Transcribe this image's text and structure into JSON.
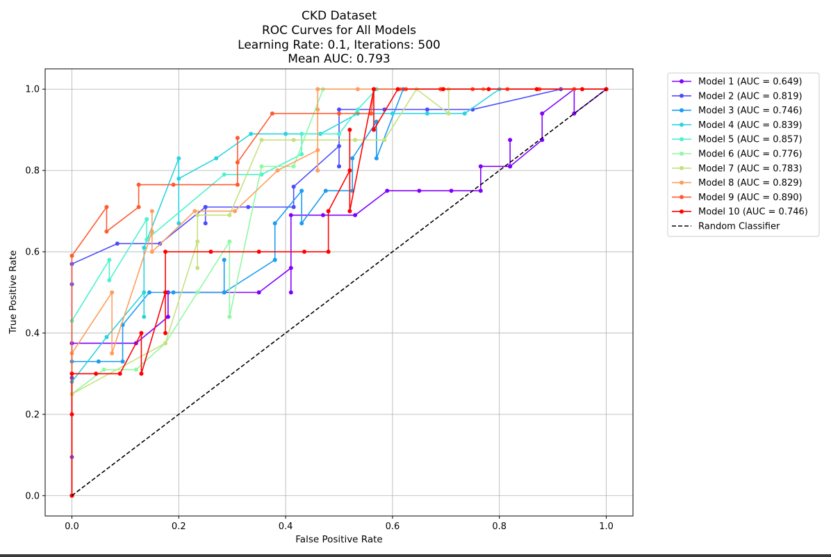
{
  "chart_data": {
    "type": "line",
    "title_lines": [
      "CKD Dataset",
      "ROC Curves for All Models",
      "Learning Rate: 0.1, Iterations: 500",
      "Mean AUC: 0.793"
    ],
    "xlabel": "False Positive Rate",
    "ylabel": "True Positive Rate",
    "xlim": [
      -0.05,
      1.05
    ],
    "ylim": [
      -0.05,
      1.05
    ],
    "x_ticks": [
      0.0,
      0.2,
      0.4,
      0.6,
      0.8,
      1.0
    ],
    "y_ticks": [
      0.0,
      0.2,
      0.4,
      0.6,
      0.8,
      1.0
    ],
    "x_tick_labels": [
      "0.0",
      "0.2",
      "0.4",
      "0.6",
      "0.8",
      "1.0"
    ],
    "y_tick_labels": [
      "0.0",
      "0.2",
      "0.4",
      "0.6",
      "0.8",
      "1.0"
    ],
    "grid": true,
    "legend_position": "outside-top-right",
    "series": [
      {
        "name": "Model 1 (AUC = 0.649)",
        "color": "#8000ff",
        "style": "solid-marker",
        "points": [
          [
            0,
            0
          ],
          [
            0,
            0.375
          ],
          [
            0.12,
            0.375
          ],
          [
            0.18,
            0.44
          ],
          [
            0.18,
            0.5
          ],
          [
            0.35,
            0.5
          ],
          [
            0.41,
            0.56
          ],
          [
            0.41,
            0.5
          ],
          [
            0.41,
            0.69
          ],
          [
            0.47,
            0.69
          ],
          [
            0.53,
            0.69
          ],
          [
            0.59,
            0.75
          ],
          [
            0.65,
            0.75
          ],
          [
            0.71,
            0.75
          ],
          [
            0.765,
            0.75
          ],
          [
            0.765,
            0.81
          ],
          [
            0.82,
            0.81
          ],
          [
            0.82,
            0.875
          ],
          [
            0.82,
            0.81
          ],
          [
            0.88,
            0.875
          ],
          [
            0.88,
            0.94
          ],
          [
            0.94,
            1.0
          ],
          [
            0.94,
            0.94
          ],
          [
            1.0,
            1.0
          ]
        ]
      },
      {
        "name": "Model 2 (AUC = 0.819)",
        "color": "#4c4cff",
        "style": "solid-marker",
        "points": [
          [
            0,
            0
          ],
          [
            0,
            0.095
          ],
          [
            0,
            0.29
          ],
          [
            0,
            0.52
          ],
          [
            0,
            0.57
          ],
          [
            0.085,
            0.62
          ],
          [
            0.165,
            0.62
          ],
          [
            0.25,
            0.71
          ],
          [
            0.25,
            0.67
          ],
          [
            0.25,
            0.71
          ],
          [
            0.33,
            0.71
          ],
          [
            0.415,
            0.71
          ],
          [
            0.415,
            0.76
          ],
          [
            0.5,
            0.86
          ],
          [
            0.5,
            0.81
          ],
          [
            0.5,
            0.95
          ],
          [
            0.585,
            0.95
          ],
          [
            0.665,
            0.95
          ],
          [
            0.75,
            0.95
          ],
          [
            0.915,
            1.0
          ],
          [
            1.0,
            1.0
          ]
        ]
      },
      {
        "name": "Model 3 (AUC = 0.746)",
        "color": "#1a9cf0",
        "style": "solid-marker",
        "points": [
          [
            0,
            0
          ],
          [
            0,
            0.33
          ],
          [
            0.05,
            0.33
          ],
          [
            0.095,
            0.33
          ],
          [
            0.095,
            0.42
          ],
          [
            0.145,
            0.5
          ],
          [
            0.19,
            0.5
          ],
          [
            0.285,
            0.5
          ],
          [
            0.285,
            0.58
          ],
          [
            0.285,
            0.5
          ],
          [
            0.38,
            0.58
          ],
          [
            0.38,
            0.67
          ],
          [
            0.43,
            0.75
          ],
          [
            0.43,
            0.67
          ],
          [
            0.475,
            0.75
          ],
          [
            0.525,
            0.75
          ],
          [
            0.525,
            0.83
          ],
          [
            0.57,
            0.92
          ],
          [
            0.57,
            0.83
          ],
          [
            0.62,
            1.0
          ],
          [
            1.0,
            1.0
          ]
        ]
      },
      {
        "name": "Model 4 (AUC = 0.839)",
        "color": "#29d3e0",
        "style": "solid-marker",
        "points": [
          [
            0,
            0
          ],
          [
            0,
            0.28
          ],
          [
            0.065,
            0.39
          ],
          [
            0.135,
            0.5
          ],
          [
            0.135,
            0.44
          ],
          [
            0.135,
            0.61
          ],
          [
            0.2,
            0.83
          ],
          [
            0.2,
            0.67
          ],
          [
            0.2,
            0.78
          ],
          [
            0.27,
            0.83
          ],
          [
            0.335,
            0.89
          ],
          [
            0.4,
            0.89
          ],
          [
            0.465,
            0.89
          ],
          [
            0.535,
            0.94
          ],
          [
            0.6,
            0.94
          ],
          [
            0.665,
            0.94
          ],
          [
            0.735,
            0.94
          ],
          [
            0.8,
            1.0
          ],
          [
            1.0,
            1.0
          ]
        ]
      },
      {
        "name": "Model 5 (AUC = 0.857)",
        "color": "#4cf2ce",
        "style": "solid-marker",
        "points": [
          [
            0,
            0
          ],
          [
            0,
            0.43
          ],
          [
            0.07,
            0.58
          ],
          [
            0.07,
            0.53
          ],
          [
            0.14,
            0.68
          ],
          [
            0.14,
            0.63
          ],
          [
            0.285,
            0.79
          ],
          [
            0.355,
            0.79
          ],
          [
            0.43,
            0.84
          ],
          [
            0.43,
            0.89
          ],
          [
            0.5,
            0.89
          ],
          [
            0.535,
            0.95
          ],
          [
            0.57,
            1.0
          ],
          [
            1.0,
            1.0
          ]
        ]
      },
      {
        "name": "Model 6 (AUC = 0.776)",
        "color": "#8ef9a2",
        "style": "solid-marker",
        "points": [
          [
            0,
            0
          ],
          [
            0,
            0.25
          ],
          [
            0.06,
            0.31
          ],
          [
            0.12,
            0.31
          ],
          [
            0.175,
            0.375
          ],
          [
            0.235,
            0.5
          ],
          [
            0.295,
            0.625
          ],
          [
            0.295,
            0.44
          ],
          [
            0.355,
            0.81
          ],
          [
            0.415,
            0.81
          ],
          [
            0.47,
            1.0
          ],
          [
            1.0,
            1.0
          ]
        ]
      },
      {
        "name": "Model 7 (AUC = 0.783)",
        "color": "#c4e17f",
        "style": "solid-marker",
        "points": [
          [
            0,
            0
          ],
          [
            0,
            0.25
          ],
          [
            0.175,
            0.375
          ],
          [
            0.235,
            0.625
          ],
          [
            0.235,
            0.56
          ],
          [
            0.235,
            0.69
          ],
          [
            0.295,
            0.69
          ],
          [
            0.355,
            0.875
          ],
          [
            0.415,
            0.875
          ],
          [
            0.53,
            0.875
          ],
          [
            0.585,
            0.875
          ],
          [
            0.645,
            1.0
          ],
          [
            0.705,
            0.94
          ],
          [
            0.705,
            1.0
          ],
          [
            1.0,
            1.0
          ]
        ]
      },
      {
        "name": "Model 8 (AUC = 0.829)",
        "color": "#ff9d5c",
        "style": "solid-marker",
        "points": [
          [
            0,
            0
          ],
          [
            0,
            0.35
          ],
          [
            0.075,
            0.5
          ],
          [
            0.075,
            0.35
          ],
          [
            0.15,
            0.65
          ],
          [
            0.15,
            0.7
          ],
          [
            0.15,
            0.6
          ],
          [
            0.23,
            0.7
          ],
          [
            0.305,
            0.7
          ],
          [
            0.385,
            0.8
          ],
          [
            0.46,
            0.85
          ],
          [
            0.46,
            0.95
          ],
          [
            0.46,
            0.8
          ],
          [
            0.46,
            1.0
          ],
          [
            0.535,
            1.0
          ],
          [
            0.615,
            1.0
          ],
          [
            0.69,
            1.0
          ],
          [
            0.77,
            1.0
          ],
          [
            1.0,
            1.0
          ]
        ]
      },
      {
        "name": "Model 9 (AUC = 0.890)",
        "color": "#ff5a30",
        "style": "solid-marker",
        "points": [
          [
            0,
            0
          ],
          [
            0,
            0.59
          ],
          [
            0.065,
            0.71
          ],
          [
            0.065,
            0.65
          ],
          [
            0.125,
            0.71
          ],
          [
            0.125,
            0.765
          ],
          [
            0.19,
            0.765
          ],
          [
            0.31,
            0.765
          ],
          [
            0.31,
            0.88
          ],
          [
            0.31,
            0.82
          ],
          [
            0.375,
            0.94
          ],
          [
            0.5,
            0.94
          ],
          [
            0.56,
            0.94
          ],
          [
            0.565,
            1.0
          ],
          [
            0.625,
            1.0
          ],
          [
            0.69,
            1.0
          ],
          [
            0.75,
            1.0
          ],
          [
            0.815,
            1.0
          ],
          [
            0.875,
            1.0
          ],
          [
            0.94,
            1.0
          ],
          [
            1.0,
            1.0
          ]
        ]
      },
      {
        "name": "Model 10 (AUC = 0.746)",
        "color": "#ff0000",
        "style": "solid-marker",
        "points": [
          [
            0,
            0
          ],
          [
            0,
            0.2
          ],
          [
            0,
            0.3
          ],
          [
            0.045,
            0.3
          ],
          [
            0.09,
            0.3
          ],
          [
            0.13,
            0.4
          ],
          [
            0.13,
            0.3
          ],
          [
            0.175,
            0.5
          ],
          [
            0.175,
            0.4
          ],
          [
            0.175,
            0.6
          ],
          [
            0.26,
            0.6
          ],
          [
            0.35,
            0.6
          ],
          [
            0.435,
            0.6
          ],
          [
            0.48,
            0.6
          ],
          [
            0.48,
            0.7
          ],
          [
            0.52,
            0.8
          ],
          [
            0.52,
            0.9
          ],
          [
            0.52,
            0.7
          ],
          [
            0.565,
            1.0
          ],
          [
            0.565,
            0.9
          ],
          [
            0.61,
            1.0
          ],
          [
            0.695,
            1.0
          ],
          [
            0.78,
            1.0
          ],
          [
            0.87,
            1.0
          ],
          [
            0.955,
            1.0
          ],
          [
            1.0,
            1.0
          ]
        ]
      },
      {
        "name": "Random Classifier",
        "color": "#000000",
        "style": "dashed",
        "points": [
          [
            0,
            0
          ],
          [
            1,
            1
          ]
        ]
      }
    ]
  }
}
